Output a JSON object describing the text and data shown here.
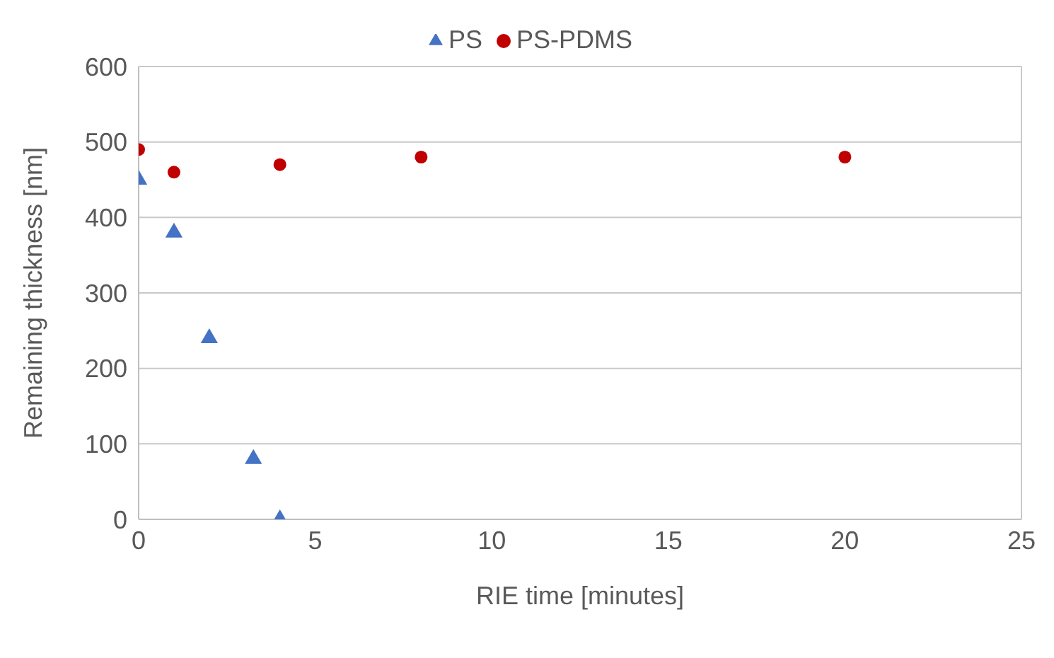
{
  "chart_data": {
    "type": "scatter",
    "xlabel": "RIE time [minutes]",
    "ylabel": "Remaining thickness [nm]",
    "series": [
      {
        "name": "PS-PDMS",
        "color": "#c00000",
        "marker": "circle",
        "x": [
          0,
          1,
          4,
          8,
          20
        ],
        "values": [
          490,
          460,
          470,
          480,
          480
        ]
      },
      {
        "name": "PS",
        "color": "#4472c4",
        "marker": "triangle",
        "x": [
          0,
          1,
          2,
          3.25,
          4
        ],
        "values": [
          450,
          380,
          240,
          80,
          0
        ]
      }
    ],
    "xlim": [
      0,
      25
    ],
    "xticks": [
      0,
      5,
      10,
      15,
      20,
      25
    ],
    "ylim": [
      0,
      600
    ],
    "yticks": [
      0,
      100,
      200,
      300,
      400,
      500,
      600
    ],
    "grid": "y",
    "legend": "top"
  }
}
